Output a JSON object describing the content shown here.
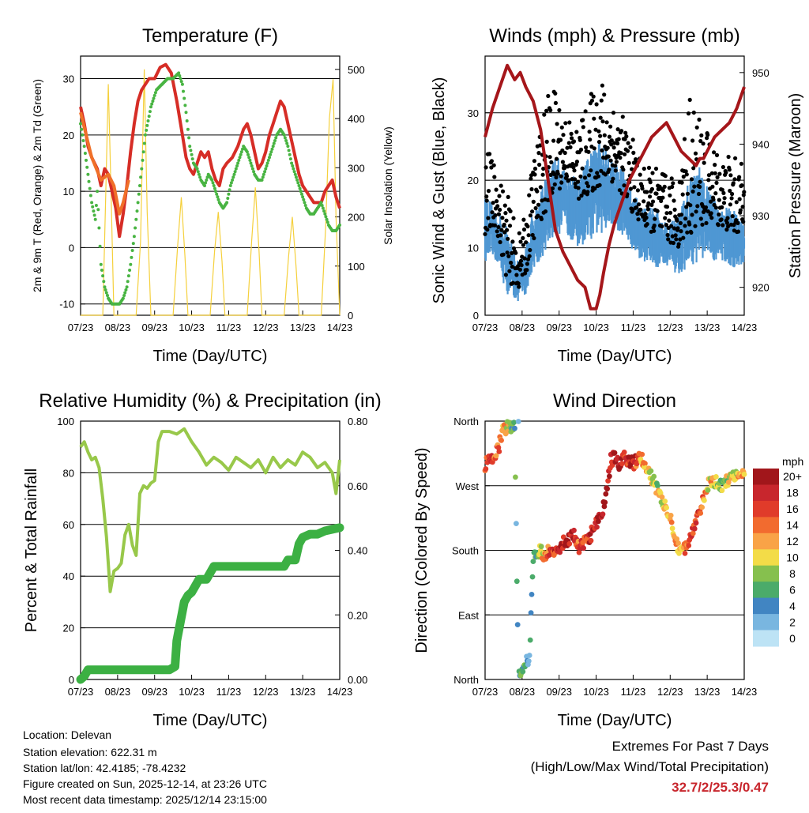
{
  "chart_data": [
    {
      "type": "line",
      "title": "Temperature (F)",
      "xlabel": "Time (Day/UTC)",
      "ylabel": "2m & 9m T (Red, Orange) & 2m Td (Green)",
      "y2label": "Solar Insolation (Yellow)",
      "x_ticks": [
        "07/23",
        "08/23",
        "09/23",
        "10/23",
        "11/23",
        "12/23",
        "13/23",
        "14/23"
      ],
      "ylim": [
        -12,
        34
      ],
      "y_ticks": [
        -10,
        0,
        10,
        20,
        30
      ],
      "y2lim": [
        0,
        527
      ],
      "y2_ticks": [
        0,
        100,
        200,
        300,
        400,
        500
      ],
      "gridlines": [
        -10,
        0,
        10,
        20,
        30
      ],
      "series": [
        {
          "name": "2m T",
          "color": "#d62d26",
          "style": "line",
          "x": [
            0,
            0.1,
            0.2,
            0.3,
            0.45,
            0.55,
            0.65,
            0.75,
            0.85,
            0.95,
            1.05,
            1.15,
            1.25,
            1.35,
            1.45,
            1.55,
            1.65,
            1.75,
            1.85,
            2.0,
            2.15,
            2.3,
            2.45,
            2.6,
            2.75,
            2.85,
            2.95,
            3.05,
            3.15,
            3.25,
            3.35,
            3.45,
            3.55,
            3.65,
            3.75,
            3.85,
            3.95,
            4.1,
            4.25,
            4.4,
            4.5,
            4.6,
            4.7,
            4.8,
            4.9,
            5.0,
            5.1,
            5.2,
            5.3,
            5.4,
            5.5,
            5.6,
            5.7,
            5.8,
            5.9,
            6.0,
            6.1,
            6.2,
            6.3,
            6.4,
            6.5,
            6.6,
            6.7,
            6.8,
            6.9,
            7.0
          ],
          "y": [
            25,
            22,
            18,
            16,
            14,
            11,
            14,
            13,
            10,
            7,
            2,
            6,
            11,
            17,
            22,
            26,
            28,
            29,
            30,
            30,
            32,
            32.5,
            31,
            26,
            20,
            16,
            14,
            13,
            15,
            17,
            16,
            17,
            14,
            12,
            11,
            14,
            15,
            16,
            18,
            21,
            22,
            20,
            17,
            14,
            15,
            17,
            20,
            22,
            24,
            26,
            25,
            22,
            19,
            16,
            13,
            11,
            10,
            9,
            8,
            8,
            8,
            10,
            11,
            12,
            9,
            7
          ]
        },
        {
          "name": "9m T",
          "color": "#f07029",
          "style": "line",
          "x": [
            0,
            0.3,
            0.55,
            0.75,
            0.9,
            1.05,
            1.15,
            1.3
          ],
          "y": [
            24,
            16,
            12,
            13,
            11,
            6,
            8,
            12
          ]
        },
        {
          "name": "2m Td",
          "color": "#48b442",
          "style": "dots",
          "x": [
            0,
            0.1,
            0.2,
            0.3,
            0.4,
            0.45,
            0.55,
            0.65,
            0.75,
            0.85,
            0.95,
            1.05,
            1.15,
            1.25,
            1.35,
            1.45,
            1.55,
            1.65,
            1.75,
            1.9,
            2.05,
            2.2,
            2.35,
            2.5,
            2.65,
            2.75,
            2.85,
            2.95,
            3.05,
            3.15,
            3.25,
            3.35,
            3.45,
            3.55,
            3.65,
            3.75,
            3.85,
            3.95,
            4.05,
            4.15,
            4.3,
            4.4,
            4.5,
            4.6,
            4.7,
            4.8,
            4.9,
            5.0,
            5.1,
            5.2,
            5.3,
            5.4,
            5.5,
            5.6,
            5.7,
            5.8,
            5.9,
            6.0,
            6.1,
            6.2,
            6.3,
            6.4,
            6.5,
            6.6,
            6.7,
            6.8,
            6.9,
            7.0
          ],
          "y": [
            22,
            18,
            13,
            8,
            5,
            10,
            -3,
            -7,
            -9,
            -10,
            -10,
            -10,
            -9,
            -7,
            -3,
            2,
            8,
            14,
            20,
            25,
            28,
            29,
            30,
            30,
            31,
            29,
            24,
            18,
            15,
            14,
            12,
            11,
            13,
            12,
            10,
            8,
            7,
            8,
            11,
            13,
            16,
            18,
            17,
            15,
            13,
            12,
            12,
            14,
            16,
            18,
            20,
            21,
            20,
            18,
            15,
            13,
            11,
            9,
            7,
            6,
            6,
            7,
            8,
            6,
            4,
            3,
            3,
            4
          ]
        },
        {
          "name": "Solar Insolation",
          "color": "#f5d03c",
          "style": "line",
          "axis": "y2",
          "x": [
            0,
            0.6,
            0.68,
            0.75,
            0.82,
            0.9,
            1.5,
            1.62,
            1.72,
            1.8,
            1.9,
            2.5,
            2.62,
            2.72,
            2.82,
            2.9,
            3.5,
            3.62,
            3.72,
            3.82,
            3.9,
            4.5,
            4.62,
            4.72,
            4.82,
            4.9,
            5.5,
            5.62,
            5.72,
            5.82,
            5.9,
            6.5,
            6.62,
            6.72,
            6.82,
            6.9,
            7.0
          ],
          "y": [
            0,
            0,
            250,
            470,
            260,
            0,
            0,
            150,
            500,
            210,
            0,
            0,
            140,
            240,
            120,
            0,
            0,
            130,
            210,
            110,
            0,
            0,
            150,
            260,
            130,
            0,
            0,
            120,
            200,
            100,
            0,
            0,
            180,
            400,
            480,
            200,
            0
          ]
        }
      ]
    },
    {
      "type": "scatter",
      "title": "Winds (mph) & Pressure (mb)",
      "xlabel": "Time (Day/UTC)",
      "ylabel": "Sonic Wind & Gust (Blue, Black)",
      "y2label": "Station Pressure (Maroon)",
      "x_ticks": [
        "07/23",
        "08/23",
        "09/23",
        "10/23",
        "11/23",
        "12/23",
        "13/23",
        "14/23"
      ],
      "ylim": [
        0,
        38.4
      ],
      "y_ticks": [
        0,
        10,
        20,
        30
      ],
      "y2lim": [
        916.1,
        952.3
      ],
      "y2_ticks": [
        920,
        930,
        940,
        950
      ],
      "gridlines": [
        0,
        10,
        20,
        30
      ],
      "series": [
        {
          "name": "Sonic Wind",
          "color": "#4f97d3",
          "style": "band",
          "x": [
            0,
            0.3,
            0.6,
            0.9,
            1.1,
            1.3,
            1.5,
            1.7,
            1.9,
            2.2,
            2.5,
            2.8,
            3.1,
            3.4,
            3.7,
            4.0,
            4.3,
            4.6,
            4.9,
            5.2,
            5.5,
            5.8,
            6.1,
            6.4,
            6.7,
            7.0
          ],
          "low": [
            8,
            8,
            3,
            2,
            3,
            7,
            8,
            10,
            12,
            12,
            10,
            11,
            12,
            13,
            12,
            9,
            8,
            7,
            7,
            6,
            7,
            8,
            8,
            8,
            7,
            7
          ],
          "high": [
            18,
            16,
            13,
            8,
            10,
            16,
            18,
            22,
            24,
            22,
            20,
            24,
            26,
            24,
            22,
            18,
            16,
            16,
            14,
            14,
            20,
            22,
            18,
            16,
            16,
            14
          ]
        },
        {
          "name": "Gust",
          "color": "#000000",
          "style": "dots",
          "x": [
            0,
            0.3,
            0.6,
            0.9,
            1.1,
            1.3,
            1.5,
            1.7,
            1.9,
            2.2,
            2.5,
            2.8,
            3.1,
            3.4,
            3.7,
            4.0,
            4.3,
            4.6,
            4.9,
            5.2,
            5.5,
            5.8,
            6.1,
            6.4,
            6.7,
            7.0
          ],
          "low": [
            12,
            13,
            5,
            4,
            6,
            11,
            14,
            16,
            18,
            20,
            17,
            18,
            19,
            20,
            18,
            15,
            13,
            12,
            11,
            10,
            12,
            13,
            14,
            13,
            12,
            12
          ],
          "high": [
            26,
            22,
            18,
            12,
            15,
            24,
            28,
            33,
            34,
            30,
            28,
            32,
            36,
            33,
            30,
            26,
            22,
            22,
            21,
            20,
            33,
            30,
            26,
            24,
            24,
            22
          ]
        },
        {
          "name": "Station Pressure",
          "color": "#a5161a",
          "style": "line",
          "axis": "y2",
          "x": [
            0,
            0.2,
            0.4,
            0.6,
            0.8,
            0.95,
            1.1,
            1.3,
            1.5,
            1.7,
            1.9,
            2.1,
            2.3,
            2.5,
            2.7,
            2.85,
            3.0,
            3.1,
            3.2,
            3.35,
            3.5,
            3.7,
            3.9,
            4.1,
            4.3,
            4.5,
            4.7,
            4.9,
            5.1,
            5.3,
            5.5,
            5.7,
            5.8,
            5.9,
            6.0,
            6.2,
            6.4,
            6.6,
            6.8,
            7.0
          ],
          "y": [
            941,
            945,
            948,
            951,
            949,
            950,
            948,
            946,
            942,
            935,
            928,
            925,
            923,
            921,
            920,
            917,
            917,
            919,
            922,
            926,
            929,
            932,
            935,
            937,
            939,
            941,
            942,
            943,
            941,
            939,
            938,
            937,
            938,
            938,
            939,
            941,
            942,
            943,
            945,
            948
          ]
        }
      ]
    },
    {
      "type": "line",
      "title": "Relative Humidity (%) & Precipitation (in)",
      "xlabel": "Time (Day/UTC)",
      "ylabel": "Percent & Total Rainfall",
      "x_ticks": [
        "07/23",
        "08/23",
        "09/23",
        "10/23",
        "11/23",
        "12/23",
        "13/23",
        "14/23"
      ],
      "ylim": [
        0,
        100
      ],
      "y_ticks": [
        0,
        20,
        40,
        60,
        80,
        100
      ],
      "y2lim": [
        0,
        0.8
      ],
      "y2_ticks": [
        "0.00",
        "0.20",
        "0.40",
        "0.60",
        "0.80"
      ],
      "gridlines": [
        20,
        40,
        60,
        80
      ],
      "series": [
        {
          "name": "Relative Humidity",
          "color": "#98c84a",
          "style": "line",
          "x": [
            0,
            0.1,
            0.2,
            0.3,
            0.4,
            0.5,
            0.6,
            0.7,
            0.8,
            0.9,
            1.0,
            1.1,
            1.2,
            1.3,
            1.4,
            1.5,
            1.6,
            1.7,
            1.8,
            1.9,
            2.0,
            2.1,
            2.2,
            2.4,
            2.6,
            2.8,
            3.0,
            3.2,
            3.4,
            3.6,
            3.8,
            4.0,
            4.2,
            4.4,
            4.6,
            4.8,
            5.0,
            5.2,
            5.4,
            5.6,
            5.8,
            6.0,
            6.2,
            6.4,
            6.6,
            6.8,
            6.9,
            7.0
          ],
          "y": [
            90,
            92,
            88,
            85,
            86,
            82,
            70,
            55,
            34,
            42,
            43,
            45,
            56,
            60,
            52,
            48,
            72,
            75,
            74,
            76,
            77,
            92,
            96,
            96,
            95,
            97,
            92,
            88,
            83,
            86,
            84,
            81,
            86,
            84,
            82,
            85,
            80,
            86,
            82,
            85,
            83,
            88,
            86,
            82,
            84,
            80,
            72,
            85
          ]
        },
        {
          "name": "Total Precipitation",
          "color": "#3cb043",
          "style": "line",
          "axis": "y2",
          "x": [
            0,
            0.1,
            0.2,
            2.4,
            2.55,
            2.6,
            2.7,
            2.8,
            2.9,
            3.0,
            3.2,
            3.4,
            3.5,
            3.6,
            3.8,
            4.0,
            5.5,
            5.6,
            5.8,
            5.9,
            6.0,
            6.2,
            6.4,
            6.6,
            7.0
          ],
          "y": [
            0,
            0.01,
            0.03,
            0.03,
            0.04,
            0.12,
            0.18,
            0.24,
            0.26,
            0.27,
            0.31,
            0.31,
            0.33,
            0.35,
            0.35,
            0.35,
            0.35,
            0.37,
            0.37,
            0.42,
            0.44,
            0.45,
            0.45,
            0.46,
            0.47
          ]
        }
      ]
    },
    {
      "type": "scatter",
      "title": "Wind Direction",
      "xlabel": "Time (Day/UTC)",
      "ylabel": "Direction (Colored By Speed)",
      "x_ticks": [
        "07/23",
        "08/23",
        "09/23",
        "10/23",
        "11/23",
        "12/23",
        "13/23",
        "14/23"
      ],
      "y_ticks": [
        "North",
        "East",
        "South",
        "West",
        "North"
      ],
      "ylim": [
        0,
        360
      ],
      "gridlines": [
        90,
        180,
        270
      ],
      "color_scale": {
        "title": "mph",
        "labels": [
          "20+",
          "18",
          "16",
          "14",
          "12",
          "10",
          "8",
          "6",
          "4",
          "2",
          "0"
        ],
        "colors": [
          "#a1161b",
          "#c8262d",
          "#e03b2a",
          "#f26b2f",
          "#f9a347",
          "#f3dc48",
          "#86c04e",
          "#4bab6a",
          "#4185c2",
          "#79b6e0",
          "#bde3f5"
        ]
      },
      "series": [
        {
          "name": "Direction",
          "x": [
            0,
            0.2,
            0.35,
            0.5,
            0.8,
            0.9,
            1.05,
            1.2,
            1.3,
            1.45,
            1.6,
            1.8,
            2.0,
            2.2,
            2.4,
            2.5,
            2.7,
            2.9,
            3.0,
            3.2,
            3.4,
            3.5,
            3.6,
            3.8,
            4.0,
            4.2,
            4.4,
            4.6,
            4.8,
            5.0,
            5.2,
            5.4,
            5.6,
            5.8,
            6.0,
            6.2,
            6.4,
            6.6,
            6.8,
            7.0
          ],
          "direction": [
            300,
            305,
            320,
            350,
            355,
            5,
            20,
            30,
            170,
            180,
            175,
            180,
            185,
            195,
            200,
            185,
            190,
            205,
            215,
            240,
            305,
            310,
            300,
            310,
            300,
            310,
            290,
            270,
            250,
            230,
            185,
            180,
            210,
            230,
            270,
            275,
            270,
            280,
            290,
            285
          ],
          "speed": [
            16,
            15,
            14,
            13,
            5,
            4,
            7,
            3,
            6,
            8,
            12,
            16,
            18,
            19,
            17,
            15,
            16,
            17,
            19,
            19,
            18,
            19,
            20,
            17,
            18,
            12,
            11,
            9,
            10,
            12,
            11,
            14,
            17,
            16,
            12,
            9,
            8,
            10,
            11,
            13
          ]
        }
      ]
    }
  ],
  "station": {
    "location": "Location: Delevan",
    "elevation": "Station elevation: 622.31 m",
    "latlon": "Station lat/lon: 42.4185; -78.4232",
    "created": "Figure created on Sun, 2025-12-14, at 23:26 UTC",
    "recent": "Most recent data timestamp: 2025/12/14 23:15:00"
  },
  "extremes": {
    "title": "Extremes For Past 7 Days",
    "subtitle": "(High/Low/Max Wind/Total Precipitation)",
    "value": "32.7/2/25.3/0.47"
  }
}
